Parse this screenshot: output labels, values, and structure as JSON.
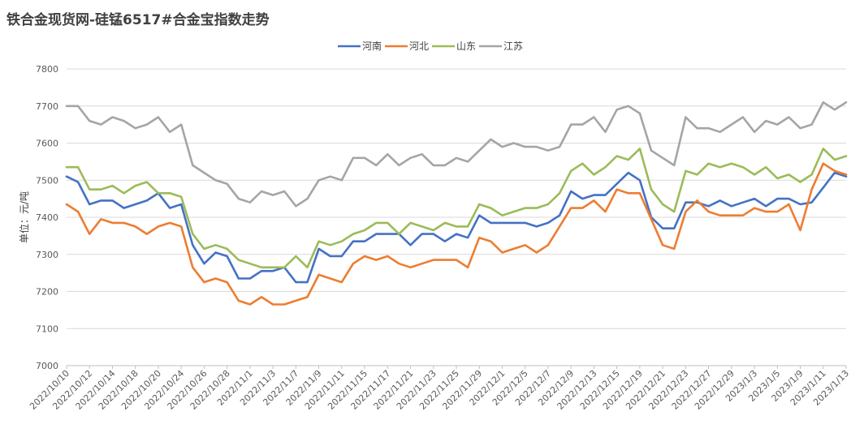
{
  "chart_data": {
    "type": "line",
    "title": "铁合金现货网-硅锰6517#合金宝指数走势",
    "ylabel": "单位：元/吨",
    "xlabel": "",
    "ylim": [
      7000,
      7800
    ],
    "yticks": [
      7000,
      7100,
      7200,
      7300,
      7400,
      7500,
      7600,
      7700,
      7800
    ],
    "grid": true,
    "legend_position": "top-center",
    "x_tick_labels": [
      "2022/10/10",
      "2022/10/12",
      "2022/10/14",
      "2022/10/18",
      "2022/10/20",
      "2022/10/24",
      "2022/10/26",
      "2022/10/28",
      "2022/11/1",
      "2022/11/3",
      "2022/11/7",
      "2022/11/9",
      "2022/11/11",
      "2022/11/15",
      "2022/11/17",
      "2022/11/21",
      "2022/11/23",
      "2022/11/25",
      "2022/11/29",
      "2022/12/1",
      "2022/12/5",
      "2022/12/7",
      "2022/12/9",
      "2022/12/13",
      "2022/12/15",
      "2022/12/19",
      "2022/12/21",
      "2022/12/23",
      "2022/12/27",
      "2022/12/29",
      "2023/1/3",
      "2023/1/5",
      "2023/1/9",
      "2023/1/11",
      "2023/1/13"
    ],
    "series": [
      {
        "name": "河南",
        "color": "#4472c4",
        "values": [
          7510,
          7495,
          7435,
          7445,
          7445,
          7425,
          7435,
          7445,
          7465,
          7425,
          7435,
          7325,
          7275,
          7305,
          7295,
          7235,
          7235,
          7255,
          7255,
          7265,
          7225,
          7225,
          7315,
          7295,
          7295,
          7335,
          7335,
          7355,
          7355,
          7355,
          7325,
          7355,
          7355,
          7335,
          7355,
          7345,
          7405,
          7385,
          7385,
          7385,
          7385,
          7375,
          7385,
          7405,
          7470,
          7450,
          7460,
          7460,
          7490,
          7520,
          7500,
          7400,
          7370,
          7370,
          7440,
          7440,
          7430,
          7445,
          7430,
          7440,
          7450,
          7430,
          7450,
          7450,
          7435,
          7440,
          7480,
          7520,
          7510
        ]
      },
      {
        "name": "河北",
        "color": "#ed7d31",
        "values": [
          7435,
          7415,
          7355,
          7395,
          7385,
          7385,
          7375,
          7355,
          7375,
          7385,
          7375,
          7265,
          7225,
          7235,
          7225,
          7175,
          7165,
          7185,
          7165,
          7165,
          7175,
          7185,
          7245,
          7235,
          7225,
          7275,
          7295,
          7285,
          7295,
          7275,
          7265,
          7275,
          7285,
          7285,
          7285,
          7265,
          7345,
          7335,
          7305,
          7315,
          7325,
          7305,
          7325,
          7375,
          7425,
          7425,
          7445,
          7415,
          7475,
          7465,
          7465,
          7395,
          7325,
          7315,
          7415,
          7445,
          7415,
          7405,
          7405,
          7405,
          7425,
          7415,
          7415,
          7435,
          7365,
          7475,
          7545,
          7525,
          7515
        ]
      },
      {
        "name": "山东",
        "color": "#9bbb59",
        "values": [
          7535,
          7535,
          7475,
          7475,
          7485,
          7465,
          7485,
          7495,
          7465,
          7465,
          7455,
          7355,
          7315,
          7325,
          7315,
          7285,
          7275,
          7265,
          7265,
          7265,
          7295,
          7265,
          7335,
          7325,
          7335,
          7355,
          7365,
          7385,
          7385,
          7355,
          7385,
          7375,
          7365,
          7385,
          7375,
          7375,
          7435,
          7425,
          7405,
          7415,
          7425,
          7425,
          7435,
          7465,
          7525,
          7545,
          7515,
          7535,
          7565,
          7555,
          7585,
          7475,
          7435,
          7415,
          7525,
          7515,
          7545,
          7535,
          7545,
          7535,
          7515,
          7535,
          7505,
          7515,
          7495,
          7515,
          7585,
          7555,
          7565
        ]
      },
      {
        "name": "江苏",
        "color": "#a5a5a5",
        "values": [
          7700,
          7700,
          7660,
          7650,
          7670,
          7660,
          7640,
          7650,
          7670,
          7630,
          7650,
          7540,
          7520,
          7500,
          7490,
          7450,
          7440,
          7470,
          7460,
          7470,
          7430,
          7450,
          7500,
          7510,
          7500,
          7560,
          7560,
          7540,
          7570,
          7540,
          7560,
          7570,
          7540,
          7540,
          7560,
          7550,
          7580,
          7610,
          7590,
          7600,
          7590,
          7590,
          7580,
          7590,
          7650,
          7650,
          7670,
          7630,
          7690,
          7700,
          7680,
          7580,
          7560,
          7540,
          7670,
          7640,
          7640,
          7630,
          7650,
          7670,
          7630,
          7660,
          7650,
          7670,
          7640,
          7650,
          7710,
          7690,
          7710
        ]
      }
    ]
  }
}
